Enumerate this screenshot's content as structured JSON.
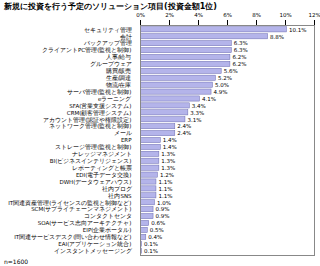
{
  "chart_data": {
    "type": "bar",
    "orientation": "horizontal",
    "title": "新規に投資を行う予定のソリューション項目(投資金額1位)",
    "annotations": [
      "n=1600"
    ],
    "categories": [
      "セキュリティ管理",
      "会計",
      "バックアップ管理",
      "クライアントPC管理(監視と制御)",
      "人事/給与",
      "グループウェア",
      "購買/販売",
      "生産/調達",
      "物流/在庫",
      "サーバ管理(監視と制御)",
      "eラーニング",
      "SFA(営業支援システム)",
      "CRM(顧客管理システム)",
      "アカウント管理(認証や権限設定)",
      "ネットワーク管理(監視と制御)",
      "メール",
      "ERP",
      "ストレージ管理(監視と制御)",
      "ナレッジマネジメント",
      "BI(ビジネスインテリジェンス)",
      "レポーティングと帳票",
      "EDI(電子データ交換)",
      "DWH(データウェアハウス)",
      "社内ブログ",
      "社内SNS",
      "IT関連資産管理(ライセンスの監視と制御など)",
      "SCM(サプライチェーンマネジメント)",
      "コンタクトセンタ",
      "SOA(サービス志向アーキテクチャ)",
      "EIP(企業ポータル)",
      "IT関連サービスデスク(問い合わせ情報など)",
      "EAI(アプリケーション統合)",
      "インスタントメッセージング"
    ],
    "values": [
      10.1,
      8.8,
      6.3,
      6.3,
      6.2,
      6.2,
      5.6,
      5.2,
      5.0,
      4.9,
      4.1,
      3.4,
      3.3,
      3.1,
      2.4,
      2.4,
      1.4,
      1.4,
      1.3,
      1.3,
      1.3,
      1.2,
      1.1,
      1.1,
      1.1,
      1.0,
      0.9,
      0.9,
      0.6,
      0.5,
      0.4,
      0.1,
      0.1
    ],
    "value_labels": [
      "10.1%",
      "8.8%",
      "6.3%",
      "6.3%",
      "6.2%",
      "6.2%",
      "5.6%",
      "5.2%",
      "5.0%",
      "4.9%",
      "4.1%",
      "3.4%",
      "3.3%",
      "3.1%",
      "2.4%",
      "2.4%",
      "1.4%",
      "1.4%",
      "1.3%",
      "1.3%",
      "1.3%",
      "1.2%",
      "1.1%",
      "1.1%",
      "1.1%",
      "1.0%",
      "0.9%",
      "0.9%",
      "0.6%",
      "0.5%",
      "0.4%",
      "0.1%",
      "0.1%"
    ],
    "data_labels": true,
    "color": "#b4b4ea",
    "xlim": [
      0,
      12
    ],
    "xticks": [
      {
        "value": 0,
        "label": "0%"
      },
      {
        "value": 2,
        "label": "2%"
      },
      {
        "value": 4,
        "label": "4%"
      },
      {
        "value": 6,
        "label": "6%"
      },
      {
        "value": 8,
        "label": "8%"
      },
      {
        "value": 10,
        "label": "10%"
      },
      {
        "value": 12,
        "label": "12%"
      }
    ],
    "grid": false
  }
}
